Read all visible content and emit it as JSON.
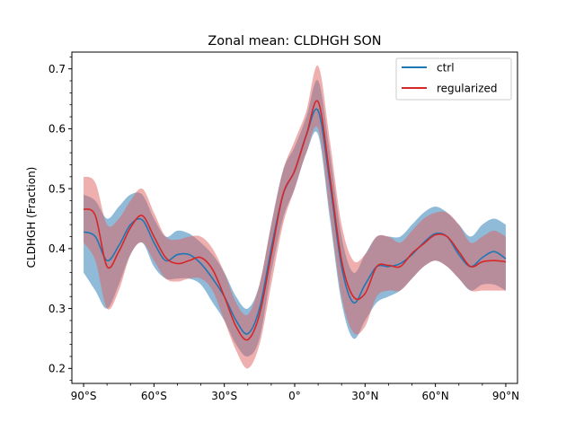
{
  "chart_data": {
    "type": "line",
    "title": "Zonal mean: CLDHGH SON",
    "xlabel": "",
    "ylabel": "CLDHGH (Fraction)",
    "xlim": [
      -95,
      95
    ],
    "ylim": [
      0.175,
      0.728
    ],
    "x_ticks": [
      {
        "value": -90,
        "label": "90°S"
      },
      {
        "value": -60,
        "label": "60°S"
      },
      {
        "value": -30,
        "label": "30°S"
      },
      {
        "value": 0,
        "label": "0°"
      },
      {
        "value": 30,
        "label": "30°N"
      },
      {
        "value": 60,
        "label": "60°N"
      },
      {
        "value": 90,
        "label": "90°N"
      }
    ],
    "y_ticks": [
      {
        "value": 0.2,
        "label": "0.2"
      },
      {
        "value": 0.3,
        "label": "0.3"
      },
      {
        "value": 0.4,
        "label": "0.4"
      },
      {
        "value": 0.5,
        "label": "0.5"
      },
      {
        "value": 0.6,
        "label": "0.6"
      },
      {
        "value": 0.7,
        "label": "0.7"
      }
    ],
    "legend_position": "top-right",
    "x": [
      -90,
      -85,
      -80,
      -75,
      -70,
      -65,
      -60,
      -55,
      -50,
      -45,
      -40,
      -35,
      -30,
      -25,
      -20,
      -15,
      -10,
      -5,
      0,
      5,
      10,
      15,
      20,
      25,
      30,
      35,
      40,
      45,
      50,
      55,
      60,
      65,
      70,
      75,
      80,
      85,
      90
    ],
    "series": [
      {
        "name": "ctrl",
        "color": "#1f77b4",
        "band_color": "#1f77b4",
        "values": [
          0.428,
          0.42,
          0.38,
          0.405,
          0.44,
          0.448,
          0.41,
          0.38,
          0.39,
          0.39,
          0.375,
          0.35,
          0.32,
          0.28,
          0.258,
          0.3,
          0.4,
          0.49,
          0.53,
          0.59,
          0.63,
          0.51,
          0.37,
          0.31,
          0.34,
          0.37,
          0.37,
          0.375,
          0.39,
          0.41,
          0.425,
          0.42,
          0.39,
          0.37,
          0.385,
          0.395,
          0.383
        ],
        "lower": [
          0.36,
          0.33,
          0.3,
          0.34,
          0.39,
          0.41,
          0.37,
          0.35,
          0.35,
          0.35,
          0.34,
          0.31,
          0.28,
          0.24,
          0.22,
          0.25,
          0.36,
          0.45,
          0.5,
          0.56,
          0.59,
          0.45,
          0.31,
          0.25,
          0.28,
          0.31,
          0.32,
          0.33,
          0.35,
          0.37,
          0.38,
          0.37,
          0.35,
          0.33,
          0.34,
          0.34,
          0.33
        ],
        "upper": [
          0.49,
          0.48,
          0.45,
          0.47,
          0.49,
          0.49,
          0.45,
          0.42,
          0.43,
          0.425,
          0.41,
          0.39,
          0.36,
          0.32,
          0.3,
          0.34,
          0.44,
          0.53,
          0.57,
          0.62,
          0.68,
          0.56,
          0.42,
          0.36,
          0.39,
          0.42,
          0.42,
          0.42,
          0.44,
          0.46,
          0.47,
          0.46,
          0.44,
          0.42,
          0.44,
          0.45,
          0.44
        ]
      },
      {
        "name": "regularized",
        "color": "#d62728",
        "band_color": "#e06060",
        "values": [
          0.466,
          0.455,
          0.37,
          0.395,
          0.435,
          0.455,
          0.42,
          0.385,
          0.375,
          0.38,
          0.385,
          0.365,
          0.32,
          0.27,
          0.248,
          0.29,
          0.39,
          0.49,
          0.53,
          0.59,
          0.645,
          0.52,
          0.38,
          0.32,
          0.325,
          0.37,
          0.372,
          0.37,
          0.392,
          0.408,
          0.423,
          0.42,
          0.395,
          0.37,
          0.378,
          0.38,
          0.378
        ],
        "lower": [
          0.41,
          0.38,
          0.3,
          0.33,
          0.39,
          0.41,
          0.38,
          0.35,
          0.345,
          0.35,
          0.35,
          0.33,
          0.28,
          0.23,
          0.2,
          0.24,
          0.34,
          0.44,
          0.5,
          0.56,
          0.6,
          0.46,
          0.32,
          0.26,
          0.27,
          0.32,
          0.33,
          0.33,
          0.35,
          0.37,
          0.38,
          0.37,
          0.35,
          0.33,
          0.33,
          0.33,
          0.33
        ],
        "upper": [
          0.52,
          0.51,
          0.44,
          0.45,
          0.48,
          0.5,
          0.46,
          0.42,
          0.415,
          0.42,
          0.42,
          0.4,
          0.36,
          0.31,
          0.29,
          0.34,
          0.44,
          0.53,
          0.58,
          0.63,
          0.705,
          0.58,
          0.44,
          0.38,
          0.39,
          0.42,
          0.42,
          0.41,
          0.43,
          0.45,
          0.46,
          0.46,
          0.44,
          0.41,
          0.42,
          0.43,
          0.42
        ]
      }
    ]
  }
}
